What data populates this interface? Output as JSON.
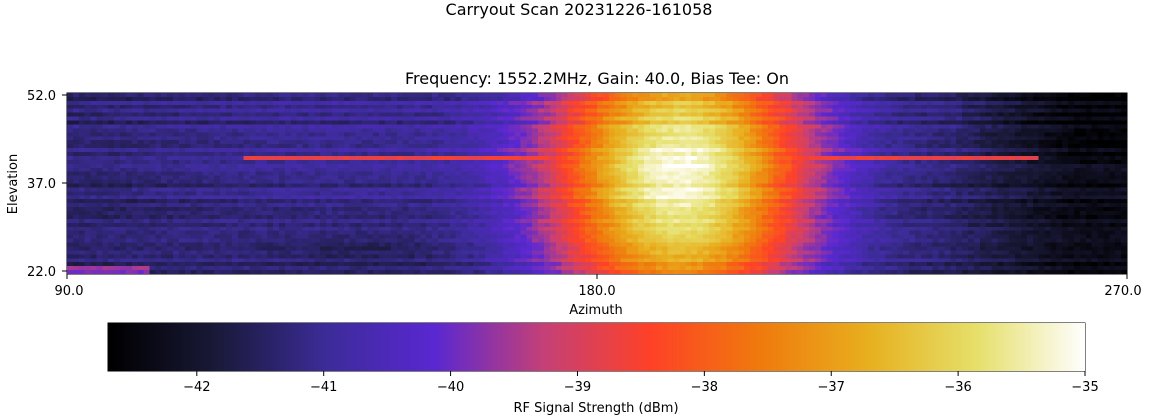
{
  "chart_data": {
    "type": "heatmap",
    "suptitle": "Carryout Scan 20231226-161058",
    "title": "Frequency: 1552.2MHz, Gain: 40.0, Bias Tee: On",
    "xlabel": "Azimuth",
    "ylabel": "Elevation",
    "xlim": [
      90.0,
      270.0
    ],
    "ylim": [
      22.0,
      52.0
    ],
    "x_ticks": [
      "90.0",
      "180.0",
      "270.0"
    ],
    "y_ticks": [
      "22.0",
      "37.0",
      "52.0"
    ],
    "colorbar": {
      "label": "RF Signal Strength (dBm)",
      "range": [
        -42.7,
        -35.0
      ],
      "ticks": [
        "−42",
        "−41",
        "−40",
        "−39",
        "−38",
        "−37",
        "−36",
        "−35"
      ],
      "orientation": "horizontal",
      "colormap": "CMRmap-like",
      "colors": [
        "#000000",
        "#1a1a3a",
        "#3c2c98",
        "#5a28d2",
        "#c44079",
        "#ff4227",
        "#f07a0d",
        "#e8b01f",
        "#e6e06a",
        "#ffffff"
      ]
    },
    "signal_model": {
      "background_dbm": -41.4,
      "peak_azimuth": 194,
      "peak_elevation": 38,
      "peak_dbm": -35.2,
      "peak_width_azimuth": 28,
      "peak_width_elevation": 30,
      "dark_region_azimuth": [
        240,
        270
      ],
      "dark_region_dbm": -42.6,
      "hot_row_elevation": 41,
      "hot_row_dbm": -39.0
    }
  }
}
